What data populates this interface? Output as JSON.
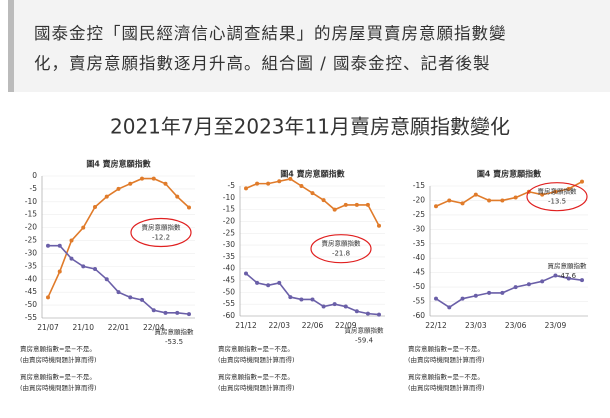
{
  "caption": [
    "國泰金控「國民經濟信心調查結果」的房屋買賣房意願指數變",
    "化，賣房意願指數逐月升高。組合圖 / 國泰金控、記者後製"
  ],
  "title": "2021年7月至2023年11月賣房意願指數變化",
  "chart_data": [
    {
      "type": "line",
      "title": "圖4 賣房意願指數",
      "categories": [
        "21/07",
        null,
        null,
        "21/10",
        null,
        null,
        "22/01",
        null,
        null,
        "22/04",
        null,
        null,
        null
      ],
      "series": [
        {
          "name": "賣房意願指數",
          "color": "#e07b2a",
          "values": [
            -47,
            -37,
            -25,
            -20,
            -12,
            -8,
            -5,
            -3,
            -1,
            -1,
            -3,
            -8,
            -12.2
          ]
        },
        {
          "name": "買房意願指數",
          "color": "#6a5fa8",
          "values": [
            -27,
            -27,
            -32,
            -35,
            -36,
            -40,
            -45,
            -47,
            -48,
            -52,
            -53,
            -53,
            -53.5
          ]
        }
      ],
      "ylim": [
        -55,
        0
      ],
      "yticks": [
        0,
        -5,
        -10,
        -15,
        -20,
        -25,
        -30,
        -35,
        -40,
        -45,
        -50,
        -55
      ],
      "grid": true,
      "notes": [
        "賣房意願指數=是−不是。",
        "(由賣房時機問題計算而得)",
        "買房意願指數=是−不是。",
        "(由買房時機問題計算而得)"
      ]
    },
    {
      "type": "line",
      "title": "圖4 賣房意願指數",
      "categories": [
        "21/12",
        null,
        null,
        "22/03",
        null,
        null,
        "22/06",
        null,
        null,
        "22/09",
        null,
        null,
        null
      ],
      "series": [
        {
          "name": "賣房意願指數",
          "color": "#e07b2a",
          "values": [
            -6,
            -4,
            -4,
            -3,
            -2,
            -5,
            -8,
            -11,
            -15,
            -13,
            -13,
            -13,
            -21.8
          ]
        },
        {
          "name": "買房意願指數",
          "color": "#6a5fa8",
          "values": [
            -42,
            -46,
            -47,
            -46,
            -52,
            -53,
            -53,
            -56,
            -55,
            -56,
            -58,
            -59,
            -59.4
          ]
        }
      ],
      "ylim": [
        -60,
        -5
      ],
      "yticks": [
        -5,
        -10,
        -15,
        -20,
        -25,
        -30,
        -35,
        -40,
        -45,
        -50,
        -55,
        -60
      ],
      "grid": true,
      "notes": [
        "賣房意願指數=是−不是。",
        "(由賣房時機問題計算而得)",
        "買房意願指數=是−不是。",
        "(由買房時機問題計算而得)"
      ]
    },
    {
      "type": "line",
      "title": "圖4 賣房意願指數",
      "categories": [
        "22/12",
        null,
        null,
        "23/03",
        null,
        null,
        "23/06",
        null,
        null,
        "23/09",
        null,
        null
      ],
      "series": [
        {
          "name": "賣房意願指數",
          "color": "#e07b2a",
          "values": [
            -22,
            -20,
            -21,
            -18,
            -20,
            -20,
            -19,
            -17,
            -18,
            -17,
            -16,
            -13.5
          ]
        },
        {
          "name": "買房意願指數",
          "color": "#6a5fa8",
          "values": [
            -54,
            -57,
            -54,
            -53,
            -52,
            -52,
            -50,
            -49,
            -48,
            -46,
            -47,
            -47.6
          ]
        }
      ],
      "ylim": [
        -60,
        -15
      ],
      "yticks": [
        -15,
        -20,
        -25,
        -30,
        -35,
        -40,
        -45,
        -50,
        -55,
        -60
      ],
      "grid": true,
      "notes": [
        "賣房意願指數=是−不是。",
        "(由賣房時機問題計算而得)",
        "買房意願指數=是−不是。",
        "(由買房時機問題計算而得)"
      ]
    }
  ]
}
